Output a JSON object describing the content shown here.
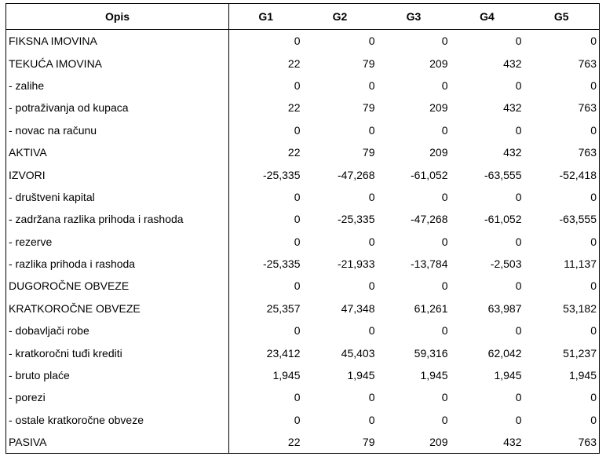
{
  "table": {
    "header": [
      "Opis",
      "G1",
      "G2",
      "G3",
      "G4",
      "G5"
    ],
    "rows": [
      [
        "FIKSNA IMOVINA",
        "0",
        "0",
        "0",
        "0",
        "0"
      ],
      [
        "TEKUĆA IMOVINA",
        "22",
        "79",
        "209",
        "432",
        "763"
      ],
      [
        "- zalihe",
        "0",
        "0",
        "0",
        "0",
        "0"
      ],
      [
        "- potraživanja od kupaca",
        "22",
        "79",
        "209",
        "432",
        "763"
      ],
      [
        "- novac na računu",
        "0",
        "0",
        "0",
        "0",
        "0"
      ],
      [
        "AKTIVA",
        "22",
        "79",
        "209",
        "432",
        "763"
      ],
      [
        "IZVORI",
        "-25,335",
        "-47,268",
        "-61,052",
        "-63,555",
        "-52,418"
      ],
      [
        "- društveni kapital",
        "0",
        "0",
        "0",
        "0",
        "0"
      ],
      [
        "- zadržana razlika prihoda i rashoda",
        "0",
        "-25,335",
        "-47,268",
        "-61,052",
        "-63,555"
      ],
      [
        "- rezerve",
        "0",
        "0",
        "0",
        "0",
        "0"
      ],
      [
        "- razlika prihoda i rashoda",
        "-25,335",
        "-21,933",
        "-13,784",
        "-2,503",
        "11,137"
      ],
      [
        "DUGOROČNE OBVEZE",
        "0",
        "0",
        "0",
        "0",
        "0"
      ],
      [
        "KRATKOROČNE OBVEZE",
        "25,357",
        "47,348",
        "61,261",
        "63,987",
        "53,182"
      ],
      [
        "- dobavljači robe",
        "0",
        "0",
        "0",
        "0",
        "0"
      ],
      [
        "- kratkoročni tuđi krediti",
        "23,412",
        "45,403",
        "59,316",
        "62,042",
        "51,237"
      ],
      [
        "- bruto plaće",
        "1,945",
        "1,945",
        "1,945",
        "1,945",
        "1,945"
      ],
      [
        "- porezi",
        "0",
        "0",
        "0",
        "0",
        "0"
      ],
      [
        "- ostale kratkoročne obveze",
        "0",
        "0",
        "0",
        "0",
        "0"
      ],
      [
        "PASIVA",
        "22",
        "79",
        "209",
        "432",
        "763"
      ]
    ]
  }
}
